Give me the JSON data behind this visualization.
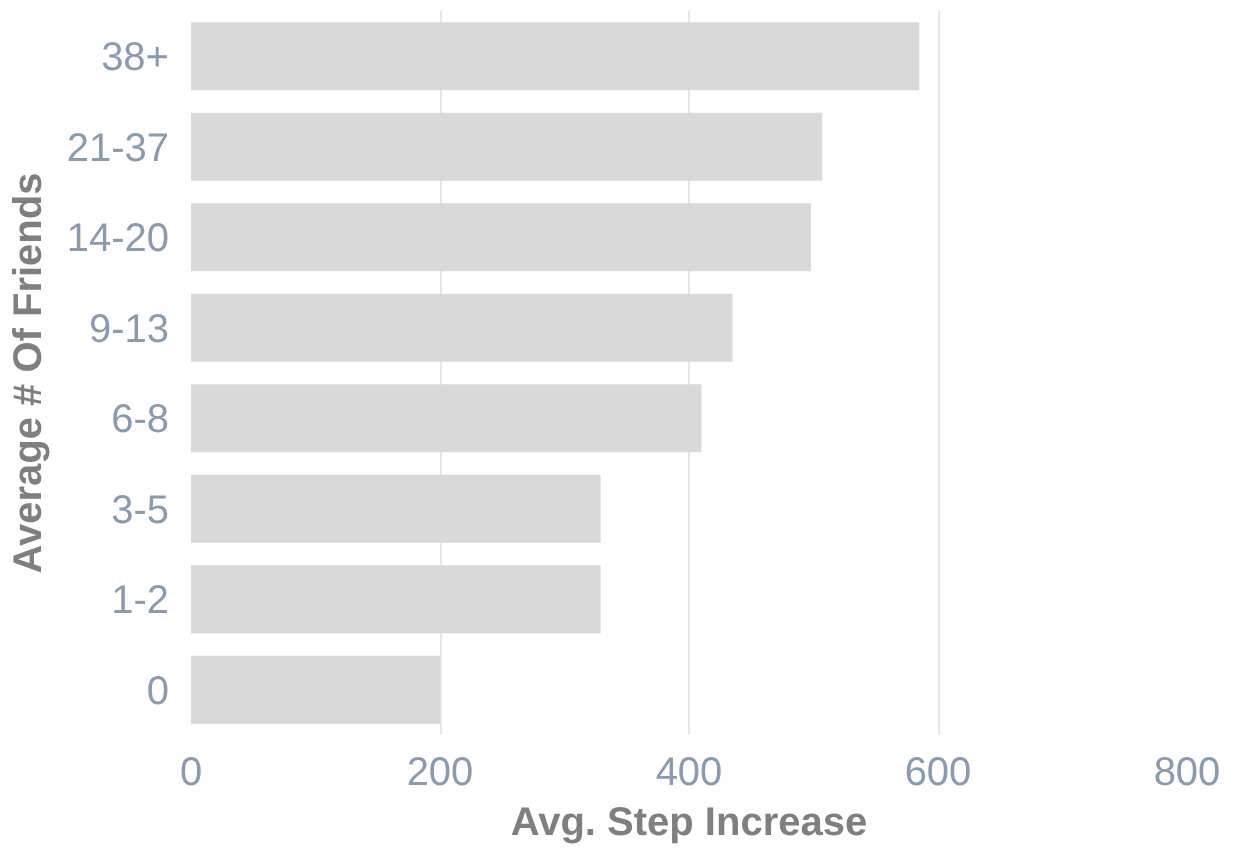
{
  "chart_data": {
    "type": "bar",
    "orientation": "horizontal",
    "xlabel": "Avg. Step Increase",
    "ylabel": "Average # Of Friends",
    "categories": [
      "38+",
      "21-37",
      "14-20",
      "9-13",
      "6-8",
      "3-5",
      "1-2",
      "0"
    ],
    "values": [
      585,
      507,
      498,
      435,
      410,
      329,
      329,
      200
    ],
    "color": "#d9d9d9",
    "xlim": [
      0,
      800
    ],
    "xticks": [
      0,
      200,
      400,
      600,
      800
    ],
    "grid": "x"
  }
}
